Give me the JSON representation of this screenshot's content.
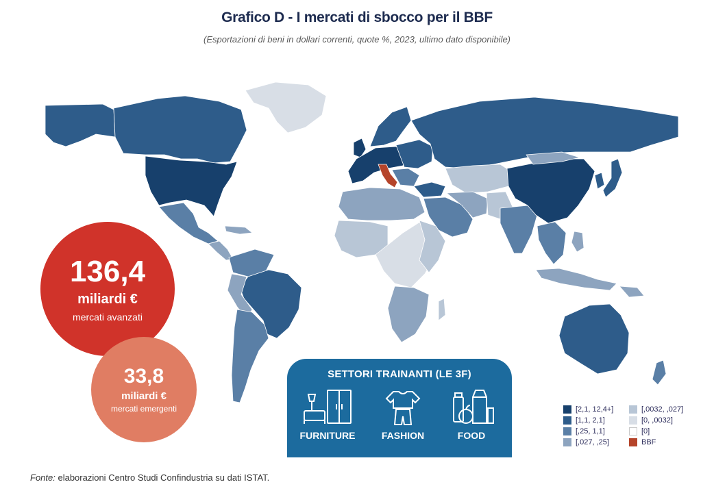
{
  "title": "Grafico D - I mercati di sbocco per il BBF",
  "subtitle": "(Esportazioni di beni in dollari correnti, quote %, 2023, ultimo dato disponibile)",
  "colors": {
    "c1": "#17406c",
    "c2": "#2e5c8a",
    "c3": "#5a7fa6",
    "c4": "#8da4bf",
    "c5": "#b8c6d6",
    "c6": "#d8dee6",
    "c7": "#ffffff",
    "bbf": "#b5442a",
    "bubble_advanced": "#d0332a",
    "bubble_emerging": "#e07d63",
    "sectors_box": "#1c6b9e"
  },
  "bubbles": {
    "advanced": {
      "value": "136,4",
      "unit": "miliardi €",
      "label": "mercati avanzati"
    },
    "emerging": {
      "value": "33,8",
      "unit": "miliardi €",
      "label": "mercati emergenti"
    }
  },
  "sectors": {
    "title": "SETTORI TRAINANTI (LE 3F)",
    "items": [
      {
        "label": "FURNITURE",
        "icon": "furniture-icon"
      },
      {
        "label": "FASHION",
        "icon": "fashion-icon"
      },
      {
        "label": "FOOD",
        "icon": "food-icon"
      }
    ]
  },
  "legend": [
    {
      "label": "[2,1, 12,4+]",
      "color": "#17406c"
    },
    {
      "label": "[1,1, 2,1]",
      "color": "#2e5c8a"
    },
    {
      "label": "[,25, 1,1]",
      "color": "#5a7fa6"
    },
    {
      "label": "[,027, ,25]",
      "color": "#8da4bf"
    },
    {
      "label": "[,0032, ,027]",
      "color": "#b8c6d6"
    },
    {
      "label": "[0, ,0032]",
      "color": "#d8dee6"
    },
    {
      "label": "[0]",
      "color": "#ffffff"
    },
    {
      "label": "BBF",
      "color": "#b5442a"
    }
  ],
  "source": {
    "prefix": "Fonte:",
    "text": " elaborazioni Centro Studi Confindustria su dati ISTAT."
  }
}
